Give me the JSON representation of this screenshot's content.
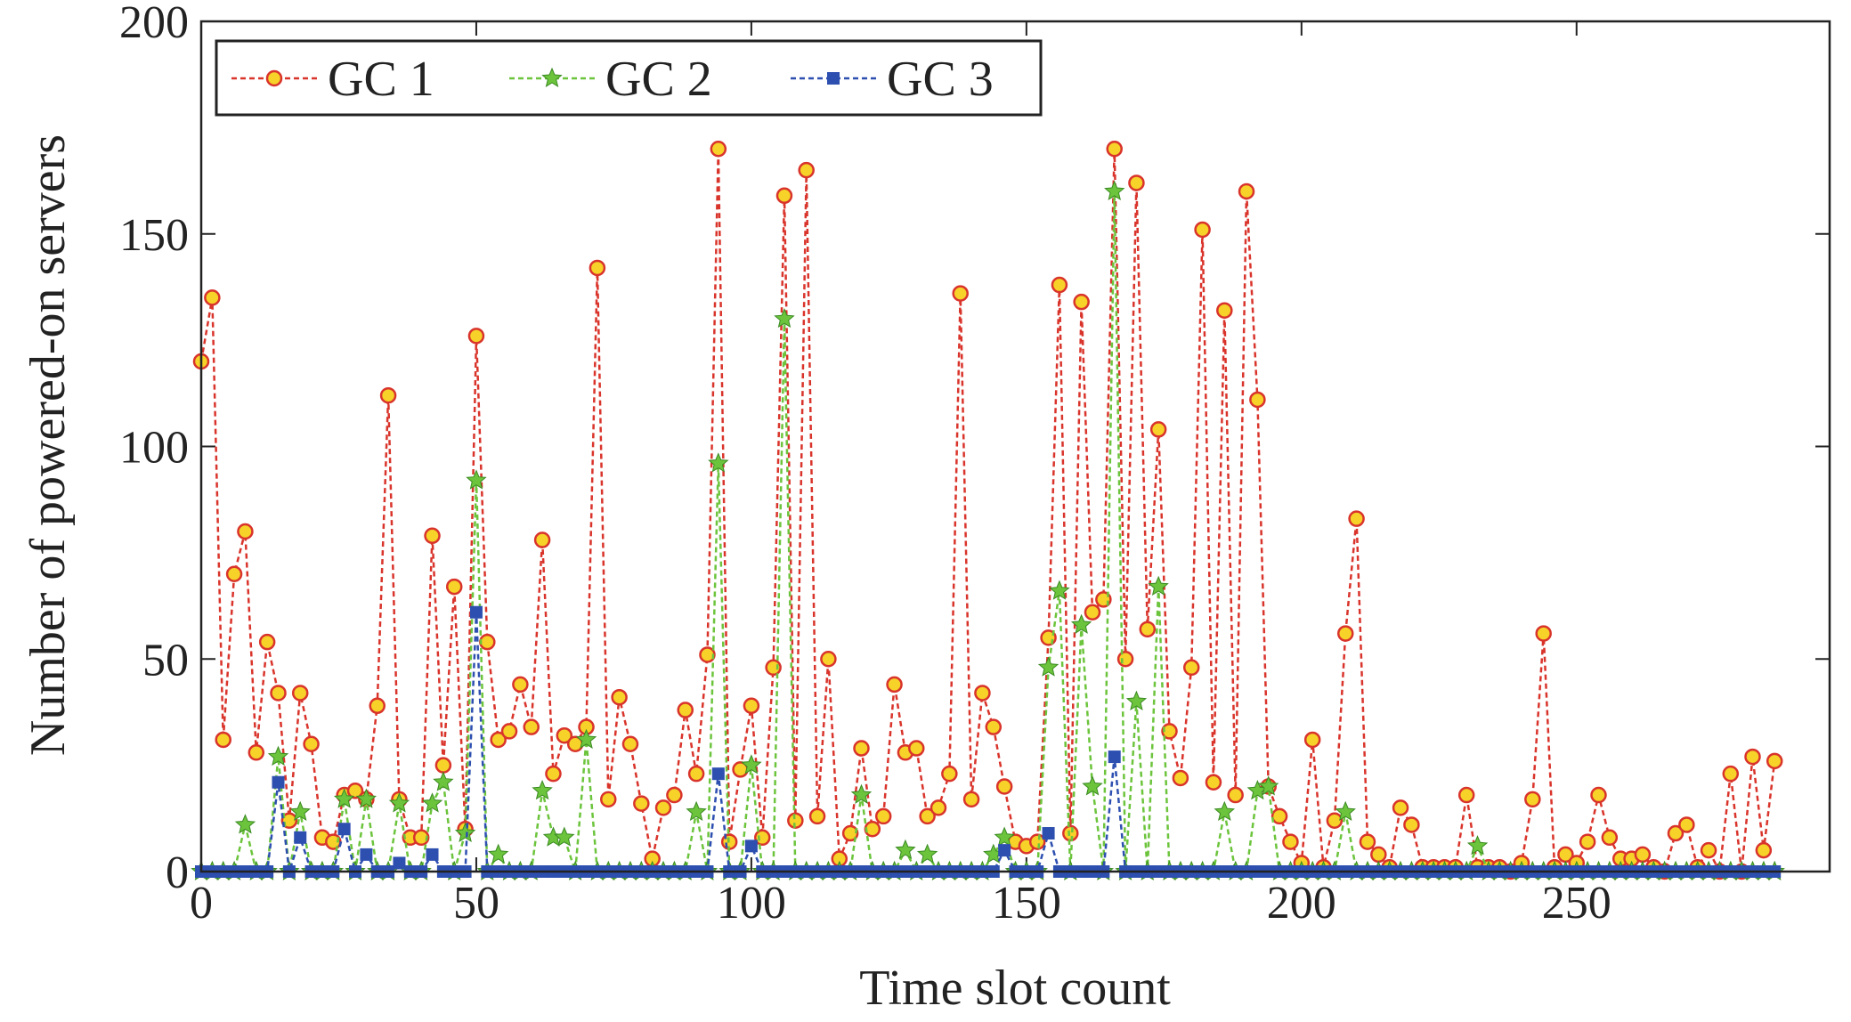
{
  "chart_data": {
    "type": "line",
    "xlabel": "Time slot count",
    "ylabel": "Number of powered-on servers",
    "x": [
      0,
      2,
      4,
      6,
      8,
      10,
      12,
      14,
      16,
      18,
      20,
      22,
      24,
      26,
      28,
      30,
      32,
      34,
      36,
      38,
      40,
      42,
      44,
      46,
      48,
      50,
      52,
      54,
      56,
      58,
      60,
      62,
      64,
      66,
      68,
      70,
      72,
      74,
      76,
      78,
      80,
      82,
      84,
      86,
      88,
      90,
      92,
      94,
      96,
      98,
      100,
      102,
      104,
      106,
      108,
      110,
      112,
      114,
      116,
      118,
      120,
      122,
      124,
      126,
      128,
      130,
      132,
      134,
      136,
      138,
      140,
      142,
      144,
      146,
      148,
      150,
      152,
      154,
      156,
      158,
      160,
      162,
      164,
      166,
      168,
      170,
      172,
      174,
      176,
      178,
      180,
      182,
      184,
      186,
      188,
      190,
      192,
      194,
      196,
      198,
      200,
      202,
      204,
      206,
      208,
      210,
      212,
      214,
      216,
      218,
      220,
      222,
      224,
      226,
      228,
      230,
      232,
      234,
      236,
      238,
      240,
      242,
      244,
      246,
      248,
      250,
      252,
      254,
      256,
      258,
      260,
      262,
      264,
      266,
      268,
      270,
      272,
      274,
      276,
      278,
      280,
      282,
      284,
      286
    ],
    "series": [
      {
        "name": "GC 1",
        "color": "#d9342b",
        "marker_fill": "#f7d229",
        "marker": "circle",
        "values": [
          120,
          135,
          31,
          70,
          80,
          28,
          54,
          42,
          12,
          42,
          30,
          8,
          7,
          18,
          19,
          17,
          39,
          112,
          17,
          8,
          8,
          79,
          25,
          67,
          10,
          126,
          54,
          31,
          33,
          44,
          34,
          78,
          23,
          32,
          30,
          34,
          142,
          17,
          41,
          30,
          16,
          3,
          15,
          18,
          38,
          23,
          51,
          170,
          7,
          24,
          39,
          8,
          48,
          159,
          12,
          165,
          13,
          50,
          3,
          9,
          29,
          10,
          13,
          44,
          28,
          29,
          13,
          15,
          23,
          136,
          17,
          42,
          34,
          20,
          7,
          6,
          7,
          55,
          138,
          9,
          134,
          61,
          64,
          170,
          50,
          162,
          57,
          104,
          33,
          22,
          48,
          151,
          21,
          132,
          18,
          160,
          111,
          20,
          13,
          7,
          2,
          31,
          1,
          12,
          56,
          83,
          7,
          4,
          1,
          15,
          11,
          1,
          1,
          1,
          1,
          18,
          1,
          1,
          1,
          0,
          2,
          17,
          56,
          1,
          4,
          2,
          7,
          18,
          8,
          3,
          3,
          4,
          1,
          0,
          9,
          11,
          1,
          5,
          0,
          23,
          0,
          27,
          5,
          26
        ]
      },
      {
        "name": "GC 2",
        "color": "#6cc43c",
        "marker_fill": "#6cc43c",
        "marker": "star",
        "values": [
          0,
          0,
          0,
          0,
          11,
          0,
          0,
          27,
          0,
          14,
          0,
          0,
          0,
          17,
          0,
          17,
          0,
          0,
          16,
          0,
          0,
          16,
          21,
          0,
          9,
          92,
          0,
          4,
          0,
          0,
          0,
          19,
          8,
          8,
          0,
          31,
          0,
          0,
          0,
          0,
          0,
          0,
          0,
          0,
          0,
          14,
          0,
          96,
          0,
          0,
          25,
          0,
          0,
          130,
          0,
          0,
          0,
          0,
          0,
          0,
          18,
          0,
          0,
          0,
          5,
          0,
          4,
          0,
          0,
          0,
          0,
          0,
          4,
          8,
          0,
          0,
          0,
          48,
          66,
          0,
          58,
          20,
          0,
          160,
          0,
          40,
          0,
          67,
          0,
          0,
          0,
          0,
          0,
          14,
          0,
          0,
          19,
          20,
          0,
          0,
          0,
          0,
          0,
          0,
          14,
          0,
          0,
          0,
          0,
          0,
          0,
          0,
          0,
          0,
          0,
          0,
          6,
          0,
          0,
          0,
          0,
          0,
          0,
          0,
          0,
          0,
          0,
          0,
          0,
          0,
          0,
          0,
          0,
          0,
          0,
          0,
          0,
          0,
          0,
          0,
          0,
          0,
          0,
          0
        ]
      },
      {
        "name": "GC 3",
        "color": "#2d4fb0",
        "marker_fill": "#2d4fb0",
        "marker": "square",
        "values": [
          0,
          0,
          0,
          0,
          0,
          0,
          0,
          21,
          0,
          8,
          0,
          0,
          0,
          10,
          0,
          4,
          0,
          0,
          2,
          0,
          0,
          4,
          0,
          0,
          0,
          61,
          0,
          0,
          0,
          0,
          0,
          0,
          0,
          0,
          0,
          0,
          0,
          0,
          0,
          0,
          0,
          0,
          0,
          0,
          0,
          0,
          0,
          23,
          0,
          0,
          6,
          0,
          0,
          0,
          0,
          0,
          0,
          0,
          0,
          0,
          0,
          0,
          0,
          0,
          0,
          0,
          0,
          0,
          0,
          0,
          0,
          0,
          0,
          5,
          0,
          0,
          0,
          9,
          0,
          0,
          0,
          0,
          0,
          27,
          0,
          0,
          0,
          0,
          0,
          0,
          0,
          0,
          0,
          0,
          0,
          0,
          0,
          0,
          0,
          0,
          0,
          0,
          0,
          0,
          0,
          0,
          0,
          0,
          0,
          0,
          0,
          0,
          0,
          0,
          0,
          0,
          0,
          0,
          0,
          0,
          0,
          0,
          0,
          0,
          0,
          0,
          0,
          0,
          0,
          0,
          0,
          0,
          0,
          0,
          0,
          0,
          0,
          0,
          0,
          0,
          0,
          0,
          0,
          0
        ]
      }
    ],
    "xlim": [
      0,
      296
    ],
    "ylim": [
      0,
      200
    ],
    "xticks": [
      0,
      50,
      100,
      150,
      200,
      250
    ],
    "yticks": [
      0,
      50,
      100,
      150,
      200
    ],
    "legend": "upper left"
  }
}
